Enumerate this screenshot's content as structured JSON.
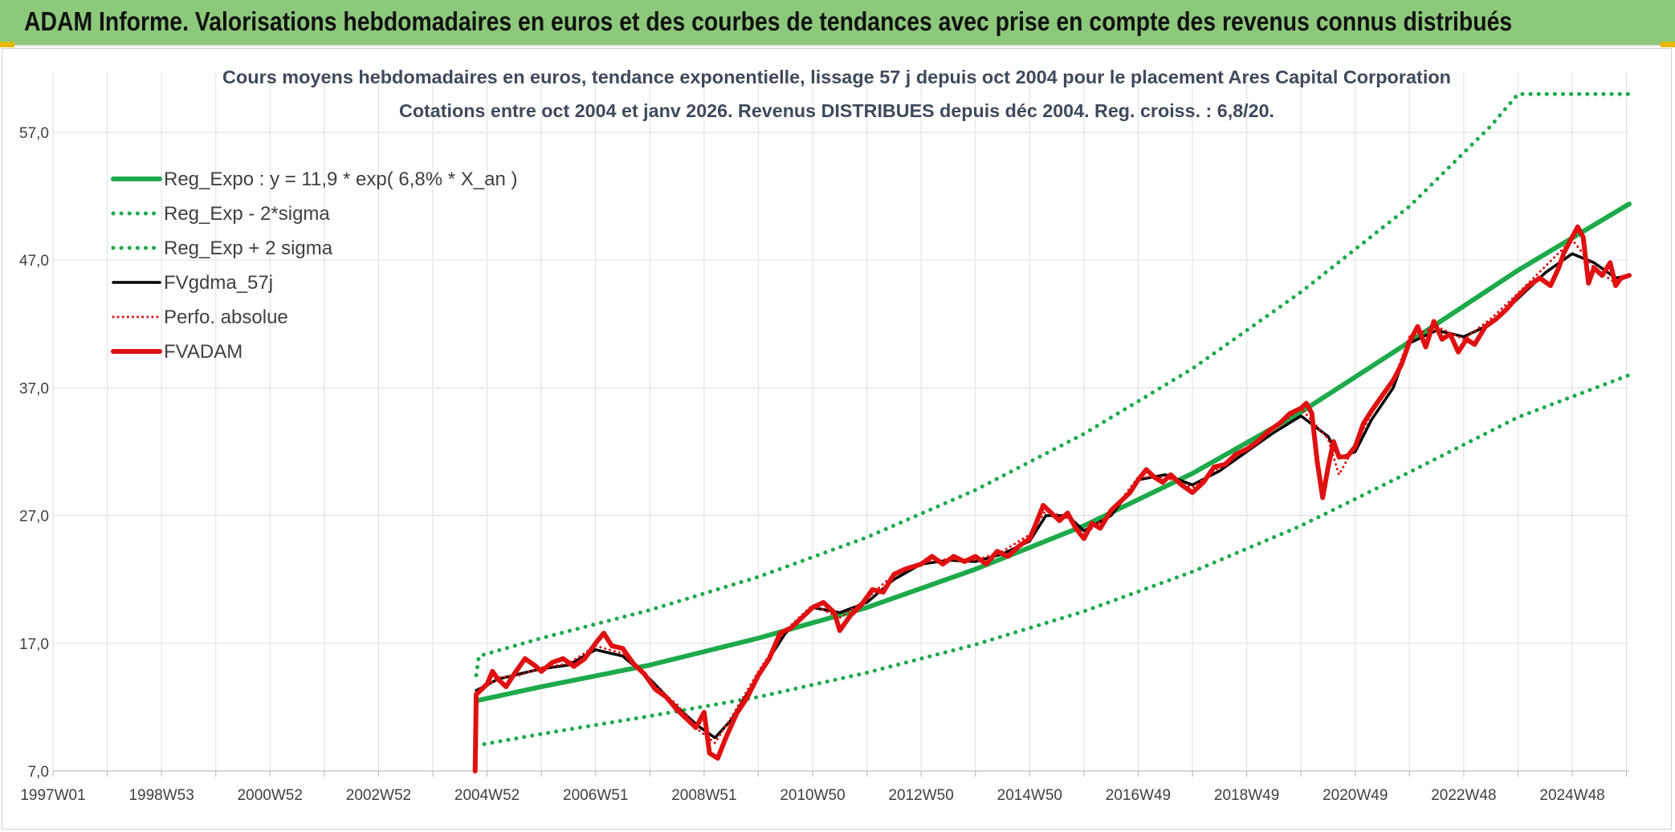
{
  "header": {
    "banner_title": "ADAM Informe. Valorisations hebdomadaires en euros et des courbes de tendances avec prise en compte des revenus connus distribués",
    "banner_color": "#8cc97a"
  },
  "chart_data": {
    "type": "line",
    "title": "Cours moyens hebdomadaires en euros, tendance exponentielle, lissage 57 j depuis oct 2004 pour le placement Ares Capital Corporation",
    "subtitle": "Cotations entre oct 2004 et janv 2026. Revenus DISTRIBUES depuis déc 2004. Reg. croiss. : 6,8/20.",
    "xlabel": "",
    "ylabel": "",
    "x_range": [
      1997.0,
      2026.05
    ],
    "ylim": [
      7.0,
      60.0
    ],
    "y_ticks": [
      7.0,
      17.0,
      27.0,
      37.0,
      47.0,
      57.0
    ],
    "y_tick_labels": [
      "7,0",
      "17,0",
      "27,0",
      "37,0",
      "47,0",
      "57,0"
    ],
    "x_ticks": [
      {
        "label": "1997W01",
        "x": 1997.0
      },
      {
        "label": "1998W53",
        "x": 1999.0
      },
      {
        "label": "2000W52",
        "x": 2001.0
      },
      {
        "label": "2002W52",
        "x": 2003.0
      },
      {
        "label": "2004W52",
        "x": 2005.0
      },
      {
        "label": "2006W51",
        "x": 2007.0
      },
      {
        "label": "2008W51",
        "x": 2009.0
      },
      {
        "label": "2010W50",
        "x": 2011.0
      },
      {
        "label": "2012W50",
        "x": 2013.0
      },
      {
        "label": "2014W50",
        "x": 2015.0
      },
      {
        "label": "2016W49",
        "x": 2017.0
      },
      {
        "label": "2018W49",
        "x": 2019.0
      },
      {
        "label": "2020W49",
        "x": 2021.0
      },
      {
        "label": "2022W48",
        "x": 2023.0
      },
      {
        "label": "2024W48",
        "x": 2025.0
      }
    ],
    "grid": true,
    "legend_position": "top-left",
    "series": [
      {
        "name": "Reg_Expo : y = 11,9 * exp( 6,8% *  X_an )",
        "style": "solid-thick",
        "color": "#1daa4a",
        "points": [
          [
            2004.8,
            12.5
          ],
          [
            2006,
            13.6
          ],
          [
            2008,
            15.3
          ],
          [
            2010,
            17.4
          ],
          [
            2012,
            19.8
          ],
          [
            2014,
            22.8
          ],
          [
            2016,
            26.2
          ],
          [
            2018,
            30.3
          ],
          [
            2020,
            35.1
          ],
          [
            2022,
            40.6
          ],
          [
            2024,
            46.2
          ],
          [
            2026.05,
            51.4
          ]
        ]
      },
      {
        "name": "Reg_Exp - 2*sigma",
        "style": "dotted",
        "color": "#1daa4a",
        "points": [
          [
            2004.8,
            9.0
          ],
          [
            2006,
            9.9
          ],
          [
            2008,
            11.3
          ],
          [
            2010,
            12.8
          ],
          [
            2012,
            14.7
          ],
          [
            2014,
            16.9
          ],
          [
            2016,
            19.5
          ],
          [
            2018,
            22.6
          ],
          [
            2020,
            26.2
          ],
          [
            2022,
            30.4
          ],
          [
            2024,
            34.7
          ],
          [
            2026.05,
            38.0
          ]
        ]
      },
      {
        "name": "Reg_Exp + 2 sigma",
        "style": "dotted",
        "color": "#1daa4a",
        "points": [
          [
            2004.8,
            14.5
          ],
          [
            2004.85,
            16.0
          ],
          [
            2006,
            17.4
          ],
          [
            2008,
            19.6
          ],
          [
            2010,
            22.2
          ],
          [
            2012,
            25.3
          ],
          [
            2014,
            29.0
          ],
          [
            2016,
            33.4
          ],
          [
            2018,
            38.5
          ],
          [
            2020,
            44.5
          ],
          [
            2022,
            51.2
          ],
          [
            2023.5,
            57.5
          ],
          [
            2024,
            60.0
          ],
          [
            2026.05,
            60.0
          ]
        ]
      },
      {
        "name": "FVgdma_57j",
        "style": "solid",
        "color": "#000000",
        "points": [
          [
            2004.8,
            13.3
          ],
          [
            2005.2,
            14.2
          ],
          [
            2005.6,
            14.6
          ],
          [
            2006.0,
            15.0
          ],
          [
            2006.5,
            15.3
          ],
          [
            2007.0,
            16.5
          ],
          [
            2007.5,
            16.0
          ],
          [
            2008.0,
            14.2
          ],
          [
            2008.5,
            12.0
          ],
          [
            2008.9,
            10.5
          ],
          [
            2009.2,
            9.6
          ],
          [
            2009.5,
            11.0
          ],
          [
            2010.0,
            14.5
          ],
          [
            2010.5,
            17.8
          ],
          [
            2011.0,
            19.8
          ],
          [
            2011.5,
            19.4
          ],
          [
            2012.0,
            20.2
          ],
          [
            2012.5,
            22.0
          ],
          [
            2013.0,
            23.2
          ],
          [
            2013.5,
            23.5
          ],
          [
            2014.0,
            23.4
          ],
          [
            2014.5,
            24.0
          ],
          [
            2015.0,
            25.0
          ],
          [
            2015.3,
            27.0
          ],
          [
            2015.7,
            27.0
          ],
          [
            2016.0,
            25.8
          ],
          [
            2016.5,
            27.0
          ],
          [
            2017.0,
            29.8
          ],
          [
            2017.5,
            30.2
          ],
          [
            2018.0,
            29.4
          ],
          [
            2018.5,
            30.5
          ],
          [
            2019.0,
            32.0
          ],
          [
            2019.5,
            33.5
          ],
          [
            2020.0,
            34.8
          ],
          [
            2020.5,
            33.2
          ],
          [
            2020.7,
            31.5
          ],
          [
            2021.0,
            32.0
          ],
          [
            2021.3,
            34.5
          ],
          [
            2021.7,
            37.0
          ],
          [
            2022.0,
            40.5
          ],
          [
            2022.5,
            41.5
          ],
          [
            2023.0,
            41.0
          ],
          [
            2023.5,
            42.0
          ],
          [
            2024.0,
            44.0
          ],
          [
            2024.5,
            46.0
          ],
          [
            2025.0,
            47.5
          ],
          [
            2025.4,
            46.8
          ],
          [
            2025.8,
            45.6
          ],
          [
            2026.05,
            45.8
          ]
        ]
      },
      {
        "name": "Perfo. absolue",
        "style": "dotted",
        "color": "#e01010",
        "points": [
          [
            2004.8,
            13.0
          ],
          [
            2005.2,
            14.3
          ],
          [
            2005.6,
            14.5
          ],
          [
            2006.0,
            15.1
          ],
          [
            2006.5,
            15.4
          ],
          [
            2007.0,
            16.8
          ],
          [
            2007.5,
            16.2
          ],
          [
            2008.0,
            14.0
          ],
          [
            2008.5,
            12.2
          ],
          [
            2008.9,
            10.2
          ],
          [
            2009.2,
            9.2
          ],
          [
            2009.5,
            11.2
          ],
          [
            2010.0,
            14.8
          ],
          [
            2010.5,
            18.0
          ],
          [
            2011.0,
            20.0
          ],
          [
            2011.5,
            19.0
          ],
          [
            2012.0,
            20.5
          ],
          [
            2012.5,
            22.4
          ],
          [
            2013.0,
            23.3
          ],
          [
            2013.5,
            23.6
          ],
          [
            2014.0,
            23.5
          ],
          [
            2014.5,
            24.2
          ],
          [
            2015.0,
            25.5
          ],
          [
            2015.3,
            27.4
          ],
          [
            2015.7,
            26.8
          ],
          [
            2016.0,
            25.5
          ],
          [
            2016.5,
            27.2
          ],
          [
            2017.0,
            30.0
          ],
          [
            2017.5,
            30.0
          ],
          [
            2018.0,
            29.2
          ],
          [
            2018.5,
            30.8
          ],
          [
            2019.0,
            32.2
          ],
          [
            2019.5,
            33.8
          ],
          [
            2020.0,
            35.4
          ],
          [
            2020.5,
            33.0
          ],
          [
            2020.7,
            30.2
          ],
          [
            2021.0,
            32.5
          ],
          [
            2021.3,
            35.0
          ],
          [
            2021.7,
            37.5
          ],
          [
            2022.0,
            41.0
          ],
          [
            2022.5,
            41.8
          ],
          [
            2023.0,
            40.8
          ],
          [
            2023.5,
            42.4
          ],
          [
            2024.0,
            44.4
          ],
          [
            2024.5,
            46.5
          ],
          [
            2025.0,
            48.6
          ],
          [
            2025.4,
            46.4
          ],
          [
            2025.8,
            45.2
          ],
          [
            2026.05,
            45.8
          ]
        ]
      },
      {
        "name": "FVADAM",
        "style": "solid-thick",
        "color": "#e01010",
        "points": [
          [
            2004.78,
            7.0
          ],
          [
            2004.8,
            13.0
          ],
          [
            2005.0,
            13.8
          ],
          [
            2005.1,
            14.8
          ],
          [
            2005.2,
            14.2
          ],
          [
            2005.35,
            13.6
          ],
          [
            2005.5,
            14.6
          ],
          [
            2005.7,
            15.8
          ],
          [
            2005.9,
            15.2
          ],
          [
            2006.0,
            14.8
          ],
          [
            2006.2,
            15.5
          ],
          [
            2006.4,
            15.8
          ],
          [
            2006.6,
            15.2
          ],
          [
            2006.8,
            15.8
          ],
          [
            2007.0,
            17.0
          ],
          [
            2007.15,
            17.8
          ],
          [
            2007.3,
            16.8
          ],
          [
            2007.5,
            16.6
          ],
          [
            2007.7,
            15.4
          ],
          [
            2007.9,
            14.6
          ],
          [
            2008.1,
            13.4
          ],
          [
            2008.3,
            12.8
          ],
          [
            2008.5,
            11.8
          ],
          [
            2008.7,
            11.0
          ],
          [
            2008.85,
            10.4
          ],
          [
            2009.0,
            11.6
          ],
          [
            2009.1,
            8.4
          ],
          [
            2009.25,
            8.0
          ],
          [
            2009.4,
            9.6
          ],
          [
            2009.6,
            11.5
          ],
          [
            2009.8,
            12.8
          ],
          [
            2010.0,
            14.5
          ],
          [
            2010.2,
            15.8
          ],
          [
            2010.4,
            17.8
          ],
          [
            2010.6,
            18.2
          ],
          [
            2010.8,
            19.0
          ],
          [
            2011.0,
            19.8
          ],
          [
            2011.2,
            20.2
          ],
          [
            2011.4,
            19.4
          ],
          [
            2011.5,
            18.0
          ],
          [
            2011.7,
            19.2
          ],
          [
            2011.9,
            20.0
          ],
          [
            2012.1,
            21.2
          ],
          [
            2012.3,
            21.0
          ],
          [
            2012.5,
            22.4
          ],
          [
            2012.7,
            22.8
          ],
          [
            2013.0,
            23.2
          ],
          [
            2013.2,
            23.8
          ],
          [
            2013.4,
            23.2
          ],
          [
            2013.6,
            23.8
          ],
          [
            2013.8,
            23.4
          ],
          [
            2014.0,
            23.8
          ],
          [
            2014.2,
            23.2
          ],
          [
            2014.4,
            24.2
          ],
          [
            2014.6,
            23.8
          ],
          [
            2014.8,
            24.6
          ],
          [
            2015.0,
            25.2
          ],
          [
            2015.1,
            26.2
          ],
          [
            2015.25,
            27.8
          ],
          [
            2015.4,
            27.2
          ],
          [
            2015.55,
            26.6
          ],
          [
            2015.7,
            27.2
          ],
          [
            2015.85,
            26.0
          ],
          [
            2016.0,
            25.2
          ],
          [
            2016.15,
            26.4
          ],
          [
            2016.3,
            26.0
          ],
          [
            2016.5,
            27.4
          ],
          [
            2016.7,
            28.2
          ],
          [
            2016.85,
            28.8
          ],
          [
            2017.0,
            29.8
          ],
          [
            2017.15,
            30.6
          ],
          [
            2017.3,
            30.0
          ],
          [
            2017.45,
            29.6
          ],
          [
            2017.6,
            30.2
          ],
          [
            2017.8,
            29.4
          ],
          [
            2018.0,
            28.8
          ],
          [
            2018.2,
            29.6
          ],
          [
            2018.4,
            30.8
          ],
          [
            2018.6,
            31.0
          ],
          [
            2018.8,
            31.8
          ],
          [
            2019.0,
            32.2
          ],
          [
            2019.2,
            32.8
          ],
          [
            2019.4,
            33.6
          ],
          [
            2019.6,
            34.2
          ],
          [
            2019.8,
            35.0
          ],
          [
            2020.0,
            35.4
          ],
          [
            2020.1,
            35.8
          ],
          [
            2020.2,
            35.0
          ],
          [
            2020.3,
            31.2
          ],
          [
            2020.4,
            28.4
          ],
          [
            2020.5,
            30.8
          ],
          [
            2020.6,
            32.8
          ],
          [
            2020.7,
            31.6
          ],
          [
            2020.85,
            31.6
          ],
          [
            2021.0,
            32.4
          ],
          [
            2021.15,
            34.2
          ],
          [
            2021.3,
            35.2
          ],
          [
            2021.5,
            36.4
          ],
          [
            2021.7,
            37.6
          ],
          [
            2021.85,
            38.8
          ],
          [
            2022.0,
            40.6
          ],
          [
            2022.15,
            41.8
          ],
          [
            2022.3,
            40.2
          ],
          [
            2022.45,
            42.2
          ],
          [
            2022.6,
            40.8
          ],
          [
            2022.75,
            41.2
          ],
          [
            2022.9,
            39.8
          ],
          [
            2023.05,
            40.8
          ],
          [
            2023.2,
            40.4
          ],
          [
            2023.4,
            41.8
          ],
          [
            2023.6,
            42.4
          ],
          [
            2023.8,
            43.2
          ],
          [
            2024.0,
            44.2
          ],
          [
            2024.2,
            45.0
          ],
          [
            2024.4,
            45.6
          ],
          [
            2024.6,
            45.0
          ],
          [
            2024.75,
            46.4
          ],
          [
            2024.85,
            47.6
          ],
          [
            2025.0,
            48.8
          ],
          [
            2025.1,
            49.6
          ],
          [
            2025.2,
            48.8
          ],
          [
            2025.3,
            45.2
          ],
          [
            2025.4,
            46.4
          ],
          [
            2025.55,
            45.8
          ],
          [
            2025.7,
            46.8
          ],
          [
            2025.8,
            45.0
          ],
          [
            2025.9,
            45.6
          ],
          [
            2026.05,
            45.8
          ]
        ]
      }
    ]
  }
}
